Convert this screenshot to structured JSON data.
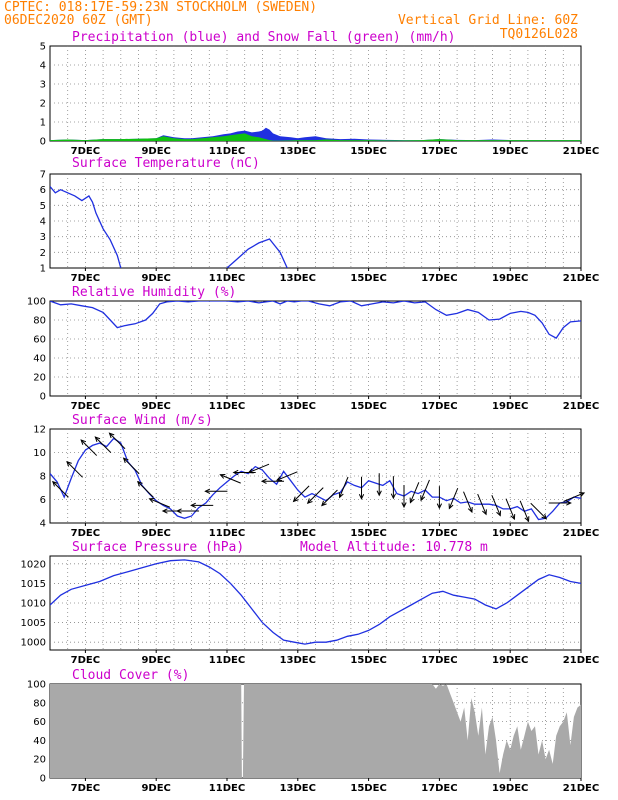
{
  "header": {
    "line1_left": "CPTEC:   018:17E-59:23N   STOCKHOLM (SWEDEN)",
    "line2_left": "06DEC2020 60Z (GMT)",
    "line2_right": "Vertical Grid Line: 60Z",
    "line3_right": "TQ0126L028"
  },
  "colors": {
    "header": "#ff7f00",
    "titles": "#cc00cc",
    "line": "#2030e0",
    "snow": "#10c010",
    "cloud": "#a9a9a9",
    "grid": "#888888"
  },
  "x_axis": {
    "ticks": [
      "7DEC",
      "9DEC",
      "11DEC",
      "13DEC",
      "15DEC",
      "17DEC",
      "19DEC",
      "21DEC"
    ],
    "range_days": [
      6.0,
      21.0
    ]
  },
  "chart_data": [
    {
      "id": "precip",
      "type": "area",
      "title": "Precipitation (blue) and Snow Fall (green) (mm/h)",
      "ylim": [
        0,
        5
      ],
      "yticks": [
        "0",
        "1",
        "2",
        "3",
        "4",
        "5"
      ],
      "series": [
        {
          "name": "Precipitation",
          "x": [
            6.0,
            6.5,
            7.0,
            7.5,
            8.0,
            8.5,
            9.0,
            9.2,
            9.5,
            9.8,
            10.0,
            10.3,
            10.6,
            10.9,
            11.1,
            11.3,
            11.5,
            11.7,
            11.9,
            12.0,
            12.1,
            12.2,
            12.3,
            12.5,
            12.8,
            13.0,
            13.2,
            13.5,
            13.8,
            14.2,
            14.6,
            15.0,
            15.5,
            16.0,
            16.5,
            17.0,
            17.5,
            18.0,
            18.5,
            19.0,
            19.5,
            20.0,
            20.5,
            21.0
          ],
          "values": [
            0.05,
            0.08,
            0.05,
            0.1,
            0.1,
            0.12,
            0.15,
            0.3,
            0.2,
            0.15,
            0.15,
            0.2,
            0.25,
            0.35,
            0.4,
            0.5,
            0.55,
            0.45,
            0.5,
            0.55,
            0.7,
            0.6,
            0.4,
            0.25,
            0.2,
            0.15,
            0.2,
            0.25,
            0.15,
            0.1,
            0.12,
            0.08,
            0.06,
            0.05,
            0.05,
            0.1,
            0.06,
            0.05,
            0.08,
            0.05,
            0.05,
            0.05,
            0.05,
            0.05
          ]
        },
        {
          "name": "Snow Fall",
          "x": [
            6.0,
            6.5,
            7.0,
            7.5,
            8.0,
            8.5,
            9.0,
            9.2,
            9.5,
            9.8,
            10.0,
            10.3,
            10.6,
            10.9,
            11.1,
            11.3,
            11.5,
            11.7,
            11.9,
            12.0,
            12.1,
            12.2,
            12.3,
            12.5,
            12.8,
            13.0,
            13.2,
            13.5,
            13.8,
            14.2,
            14.6,
            15.0,
            15.5,
            16.0,
            16.5,
            17.0,
            17.5,
            18.0,
            18.5,
            19.0,
            19.5,
            20.0,
            20.5,
            21.0
          ],
          "values": [
            0.05,
            0.08,
            0.05,
            0.1,
            0.1,
            0.12,
            0.15,
            0.25,
            0.15,
            0.1,
            0.1,
            0.15,
            0.2,
            0.25,
            0.3,
            0.35,
            0.4,
            0.25,
            0.2,
            0.15,
            0.1,
            0.05,
            0.02,
            0.02,
            0.03,
            0.05,
            0.05,
            0.05,
            0.08,
            0.05,
            0.05,
            0.05,
            0.03,
            0.03,
            0.05,
            0.1,
            0.05,
            0.05,
            0.05,
            0.05,
            0.05,
            0.05,
            0.05,
            0.05
          ]
        }
      ]
    },
    {
      "id": "temp",
      "type": "line",
      "title": "Surface Temperature (nC)",
      "ylim": [
        1,
        7
      ],
      "yticks": [
        "1",
        "2",
        "3",
        "4",
        "5",
        "6",
        "7"
      ],
      "series": [
        {
          "x": [
            6.0,
            6.15,
            6.3,
            6.5,
            6.7,
            6.9,
            7.1,
            7.2,
            7.3,
            7.5,
            7.7,
            7.9,
            8.0
          ],
          "values": [
            6.2,
            5.8,
            6.0,
            5.8,
            5.6,
            5.3,
            5.6,
            5.2,
            4.5,
            3.5,
            2.8,
            1.8,
            1.0
          ]
        },
        {
          "x": [
            11.0,
            11.3,
            11.6,
            11.9,
            12.2,
            12.5,
            12.7
          ],
          "values": [
            1.0,
            1.6,
            2.2,
            2.6,
            2.85,
            2.0,
            1.0
          ]
        }
      ]
    },
    {
      "id": "rh",
      "type": "line",
      "title": "Relative Humidity (%)",
      "ylim": [
        0,
        100
      ],
      "yticks": [
        "0",
        "20",
        "40",
        "60",
        "80",
        "100"
      ],
      "series": [
        {
          "x": [
            6.0,
            6.3,
            6.6,
            6.9,
            7.2,
            7.5,
            7.7,
            7.9,
            8.1,
            8.4,
            8.7,
            8.9,
            9.1,
            9.3,
            9.6,
            9.9,
            10.2,
            10.5,
            10.8,
            11.0,
            11.3,
            11.6,
            11.9,
            12.1,
            12.3,
            12.5,
            12.7,
            12.9,
            13.1,
            13.3,
            13.6,
            13.9,
            14.2,
            14.5,
            14.8,
            15.1,
            15.4,
            15.7,
            16.0,
            16.3,
            16.6,
            16.9,
            17.2,
            17.5,
            17.8,
            18.1,
            18.4,
            18.7,
            19.0,
            19.3,
            19.5,
            19.7,
            19.9,
            20.1,
            20.3,
            20.5,
            20.7,
            21.0
          ],
          "values": [
            100,
            96,
            97,
            95,
            93,
            88,
            80,
            72,
            74,
            76,
            80,
            87,
            97,
            99,
            100,
            99,
            100,
            100,
            100,
            100,
            99,
            100,
            98,
            99,
            100,
            97,
            100,
            99,
            100,
            100,
            97,
            95,
            99,
            100,
            95,
            97,
            99,
            98,
            100,
            98,
            99,
            91,
            85,
            87,
            91,
            88,
            80,
            81,
            87,
            89,
            88,
            85,
            77,
            65,
            61,
            72,
            78,
            79
          ]
        }
      ]
    },
    {
      "id": "wind",
      "type": "line",
      "title": "Surface Wind (m/s)",
      "ylim": [
        4,
        12
      ],
      "yticks": [
        "4",
        "6",
        "8",
        "10",
        "12"
      ],
      "series": [
        {
          "x": [
            6.0,
            6.2,
            6.4,
            6.6,
            6.8,
            7.0,
            7.2,
            7.4,
            7.6,
            7.8,
            8.0,
            8.2,
            8.4,
            8.6,
            8.8,
            9.0,
            9.2,
            9.4,
            9.6,
            9.8,
            10.0,
            10.2,
            10.4,
            10.6,
            10.8,
            11.0,
            11.2,
            11.4,
            11.6,
            11.8,
            12.0,
            12.2,
            12.4,
            12.6,
            12.8,
            13.0,
            13.2,
            13.4,
            13.6,
            13.8,
            14.0,
            14.2,
            14.4,
            14.6,
            14.8,
            15.0,
            15.2,
            15.4,
            15.6,
            15.8,
            16.0,
            16.2,
            16.4,
            16.6,
            16.8,
            17.0,
            17.2,
            17.4,
            17.6,
            17.8,
            18.0,
            18.2,
            18.4,
            18.6,
            18.8,
            19.0,
            19.2,
            19.4,
            19.6,
            19.8,
            20.0,
            20.2,
            20.4,
            20.6,
            20.8,
            21.0
          ],
          "values": [
            8.2,
            7.5,
            6.2,
            7.8,
            9.3,
            10.2,
            10.6,
            10.8,
            10.5,
            11.2,
            10.8,
            9.2,
            8.5,
            7.2,
            6.5,
            5.9,
            5.5,
            5.2,
            4.6,
            4.4,
            4.6,
            5.3,
            5.7,
            6.4,
            7.0,
            7.5,
            8.0,
            8.4,
            8.2,
            8.8,
            8.5,
            7.8,
            7.3,
            8.4,
            7.6,
            6.8,
            6.2,
            6.5,
            6.2,
            5.9,
            6.4,
            6.6,
            7.5,
            7.2,
            7.0,
            7.6,
            7.4,
            7.2,
            7.6,
            6.5,
            6.3,
            6.7,
            6.5,
            6.8,
            6.2,
            6.2,
            5.9,
            6.1,
            5.7,
            5.8,
            5.6,
            5.6,
            5.6,
            5.5,
            5.2,
            5.2,
            5.4,
            5.0,
            5.2,
            4.3,
            4.4,
            5.0,
            5.7,
            5.8,
            6.2,
            6.1
          ]
        }
      ],
      "barbs": [
        {
          "x": 6.3,
          "dir": "NW"
        },
        {
          "x": 6.7,
          "dir": "NW"
        },
        {
          "x": 7.1,
          "dir": "NW"
        },
        {
          "x": 7.5,
          "dir": "NW"
        },
        {
          "x": 7.9,
          "dir": "NW"
        },
        {
          "x": 8.3,
          "dir": "NW"
        },
        {
          "x": 8.7,
          "dir": "NW"
        },
        {
          "x": 9.1,
          "dir": "WNW"
        },
        {
          "x": 9.5,
          "dir": "W"
        },
        {
          "x": 9.9,
          "dir": "W"
        },
        {
          "x": 10.3,
          "dir": "W"
        },
        {
          "x": 10.7,
          "dir": "W"
        },
        {
          "x": 11.1,
          "dir": "WNW"
        },
        {
          "x": 11.5,
          "dir": "W"
        },
        {
          "x": 11.9,
          "dir": "WSW"
        },
        {
          "x": 12.3,
          "dir": "W"
        },
        {
          "x": 12.7,
          "dir": "WSW"
        },
        {
          "x": 13.1,
          "dir": "SW"
        },
        {
          "x": 13.5,
          "dir": "SW"
        },
        {
          "x": 13.9,
          "dir": "SW"
        },
        {
          "x": 14.3,
          "dir": "SSW"
        },
        {
          "x": 14.8,
          "dir": "S"
        },
        {
          "x": 15.3,
          "dir": "S"
        },
        {
          "x": 15.7,
          "dir": "S"
        },
        {
          "x": 16.0,
          "dir": "S"
        },
        {
          "x": 16.3,
          "dir": "SSW"
        },
        {
          "x": 16.6,
          "dir": "SSW"
        },
        {
          "x": 17.0,
          "dir": "S"
        },
        {
          "x": 17.4,
          "dir": "SSW"
        },
        {
          "x": 17.8,
          "dir": "SSE"
        },
        {
          "x": 18.2,
          "dir": "SSE"
        },
        {
          "x": 18.6,
          "dir": "SSE"
        },
        {
          "x": 19.0,
          "dir": "SSE"
        },
        {
          "x": 19.4,
          "dir": "SSE"
        },
        {
          "x": 19.8,
          "dir": "SE"
        },
        {
          "x": 20.4,
          "dir": "E"
        },
        {
          "x": 20.8,
          "dir": "ENE"
        }
      ]
    },
    {
      "id": "pressure",
      "type": "line",
      "title": "Surface Pressure (hPa)",
      "subtitle": "Model Altitude: 10.778 m",
      "ylim": [
        998,
        1022
      ],
      "yticks": [
        "1000",
        "1005",
        "1010",
        "1015",
        "1020"
      ],
      "series": [
        {
          "x": [
            6.0,
            6.3,
            6.6,
            7.0,
            7.4,
            7.8,
            8.2,
            8.6,
            9.0,
            9.4,
            9.8,
            10.2,
            10.5,
            10.8,
            11.1,
            11.4,
            11.7,
            12.0,
            12.3,
            12.6,
            12.9,
            13.2,
            13.5,
            13.8,
            14.1,
            14.4,
            14.7,
            15.0,
            15.3,
            15.6,
            15.9,
            16.2,
            16.5,
            16.8,
            17.1,
            17.4,
            17.7,
            18.0,
            18.3,
            18.6,
            18.9,
            19.2,
            19.5,
            19.8,
            20.1,
            20.4,
            20.7,
            21.0
          ],
          "values": [
            1009.5,
            1012,
            1013.5,
            1014.5,
            1015.5,
            1017,
            1018,
            1019,
            1020,
            1020.8,
            1021,
            1020.5,
            1019.2,
            1017.5,
            1015,
            1012,
            1008.5,
            1005,
            1002.5,
            1000.5,
            1000,
            999.5,
            1000,
            1000,
            1000.5,
            1001.5,
            1002,
            1003,
            1004.5,
            1006.5,
            1008,
            1009.5,
            1011,
            1012.5,
            1013,
            1012,
            1011.5,
            1011,
            1009.5,
            1008.5,
            1010,
            1012,
            1014,
            1016,
            1017.2,
            1016.5,
            1015.5,
            1015
          ]
        }
      ]
    },
    {
      "id": "cloud",
      "type": "area",
      "title": "Cloud Cover (%)",
      "ylim": [
        0,
        100
      ],
      "yticks": [
        "0",
        "20",
        "40",
        "60",
        "80",
        "100"
      ],
      "series": [
        {
          "x": [
            6.0,
            8.0,
            10.0,
            11.4,
            11.42,
            11.45,
            11.48,
            12.0,
            14.0,
            16.0,
            16.5,
            16.8,
            16.9,
            17.0,
            17.1,
            17.2,
            17.3,
            17.4,
            17.5,
            17.6,
            17.7,
            17.8,
            17.9,
            18.0,
            18.1,
            18.2,
            18.3,
            18.4,
            18.5,
            18.6,
            18.7,
            18.8,
            18.9,
            19.0,
            19.1,
            19.2,
            19.3,
            19.4,
            19.5,
            19.6,
            19.7,
            19.8,
            19.9,
            20.0,
            20.1,
            20.2,
            20.3,
            20.4,
            20.5,
            20.6,
            20.7,
            20.8,
            20.9,
            21.0
          ],
          "values": [
            100,
            100,
            100,
            100,
            0,
            0,
            100,
            100,
            100,
            100,
            100,
            100,
            95,
            100,
            98,
            100,
            90,
            80,
            70,
            60,
            75,
            40,
            85,
            70,
            45,
            75,
            25,
            55,
            65,
            40,
            5,
            25,
            40,
            30,
            45,
            55,
            30,
            45,
            60,
            50,
            55,
            25,
            40,
            20,
            30,
            15,
            45,
            55,
            60,
            70,
            35,
            65,
            75,
            78
          ]
        }
      ]
    }
  ]
}
